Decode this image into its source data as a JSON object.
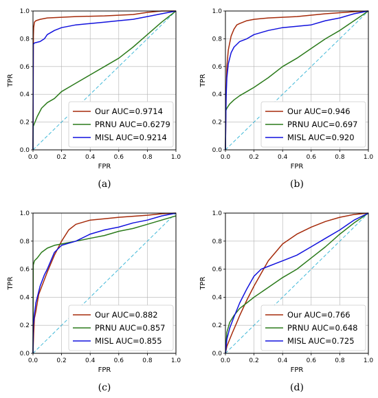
{
  "chart_data": [
    {
      "type": "line",
      "caption": "(a)",
      "xlabel": "FPR",
      "ylabel": "TPR",
      "xlim": [
        0,
        1
      ],
      "ylim": [
        0,
        1
      ],
      "xticks": [
        "0.0",
        "0.2",
        "0.4",
        "0.6",
        "0.8",
        "1.0"
      ],
      "yticks": [
        "0.0",
        "0.2",
        "0.4",
        "0.6",
        "0.8",
        "1.0"
      ],
      "grid": true,
      "legend_position": "bottom-right",
      "diagonal": true,
      "series": [
        {
          "name": "Our AUC=0.9714",
          "color": "#a52a0a",
          "x": [
            0,
            0.003,
            0.005,
            0.01,
            0.02,
            0.05,
            0.1,
            0.2,
            0.3,
            0.5,
            0.7,
            0.8,
            0.9,
            1.0
          ],
          "y": [
            0,
            0.82,
            0.88,
            0.92,
            0.93,
            0.94,
            0.95,
            0.955,
            0.96,
            0.965,
            0.975,
            0.99,
            1.0,
            1.0
          ]
        },
        {
          "name": "PRNU AUC=0.6279",
          "color": "#2a7a1a",
          "x": [
            0,
            0.002,
            0.01,
            0.03,
            0.06,
            0.1,
            0.15,
            0.2,
            0.3,
            0.4,
            0.5,
            0.6,
            0.7,
            0.8,
            0.9,
            0.95,
            1.0
          ],
          "y": [
            0,
            0.17,
            0.19,
            0.24,
            0.3,
            0.34,
            0.37,
            0.42,
            0.48,
            0.54,
            0.6,
            0.66,
            0.74,
            0.83,
            0.92,
            0.96,
            1.0
          ]
        },
        {
          "name": "MISL AUC=0.9214",
          "color": "#1111dd",
          "x": [
            0,
            0.002,
            0.01,
            0.05,
            0.08,
            0.1,
            0.15,
            0.2,
            0.3,
            0.4,
            0.5,
            0.6,
            0.7,
            0.8,
            0.9,
            1.0
          ],
          "y": [
            0,
            0.76,
            0.77,
            0.78,
            0.8,
            0.83,
            0.86,
            0.88,
            0.9,
            0.91,
            0.92,
            0.93,
            0.94,
            0.96,
            0.98,
            1.0
          ]
        }
      ]
    },
    {
      "type": "line",
      "caption": "(b)",
      "xlabel": "FPR",
      "ylabel": "TPR",
      "xlim": [
        0,
        1
      ],
      "ylim": [
        0,
        1
      ],
      "xticks": [
        "0.0",
        "0.2",
        "0.4",
        "0.6",
        "0.8",
        "1.0"
      ],
      "yticks": [
        "0.0",
        "0.2",
        "0.4",
        "0.6",
        "0.8",
        "1.0"
      ],
      "grid": true,
      "legend_position": "bottom-right",
      "diagonal": true,
      "series": [
        {
          "name": "Our AUC=0.946",
          "color": "#a52a0a",
          "x": [
            0,
            0.005,
            0.01,
            0.02,
            0.04,
            0.06,
            0.08,
            0.1,
            0.15,
            0.2,
            0.3,
            0.5,
            0.7,
            0.9,
            1.0
          ],
          "y": [
            0,
            0.4,
            0.6,
            0.72,
            0.82,
            0.87,
            0.9,
            0.91,
            0.93,
            0.94,
            0.95,
            0.96,
            0.98,
            0.995,
            1.0
          ]
        },
        {
          "name": "PRNU AUC=0.697",
          "color": "#2a7a1a",
          "x": [
            0,
            0.002,
            0.01,
            0.03,
            0.06,
            0.1,
            0.15,
            0.2,
            0.3,
            0.4,
            0.5,
            0.6,
            0.7,
            0.8,
            0.9,
            1.0
          ],
          "y": [
            0,
            0.28,
            0.3,
            0.33,
            0.36,
            0.39,
            0.42,
            0.45,
            0.52,
            0.6,
            0.66,
            0.73,
            0.8,
            0.86,
            0.93,
            1.0
          ]
        },
        {
          "name": "MISL AUC=0.920",
          "color": "#1111dd",
          "x": [
            0,
            0.005,
            0.01,
            0.02,
            0.04,
            0.06,
            0.1,
            0.15,
            0.2,
            0.3,
            0.4,
            0.5,
            0.6,
            0.7,
            0.8,
            0.9,
            1.0
          ],
          "y": [
            0,
            0.38,
            0.52,
            0.62,
            0.7,
            0.74,
            0.78,
            0.8,
            0.83,
            0.86,
            0.88,
            0.89,
            0.9,
            0.93,
            0.95,
            0.98,
            1.0
          ]
        }
      ]
    },
    {
      "type": "line",
      "caption": "(c)",
      "xlabel": "FPR",
      "ylabel": "TPR",
      "xlim": [
        0,
        1
      ],
      "ylim": [
        0,
        1
      ],
      "xticks": [
        "0.0",
        "0.2",
        "0.4",
        "0.6",
        "0.8",
        "1.0"
      ],
      "yticks": [
        "0.0",
        "0.2",
        "0.4",
        "0.6",
        "0.8",
        "1.0"
      ],
      "grid": true,
      "legend_position": "bottom-right",
      "diagonal": true,
      "series": [
        {
          "name": "Our AUC=0.882",
          "color": "#a52a0a",
          "x": [
            0,
            0.005,
            0.01,
            0.02,
            0.04,
            0.07,
            0.1,
            0.15,
            0.2,
            0.25,
            0.3,
            0.4,
            0.5,
            0.6,
            0.8,
            0.9,
            1.0
          ],
          "y": [
            0,
            0.14,
            0.25,
            0.3,
            0.42,
            0.5,
            0.58,
            0.7,
            0.8,
            0.88,
            0.92,
            0.95,
            0.96,
            0.97,
            0.985,
            0.995,
            1.0
          ]
        },
        {
          "name": "PRNU AUC=0.857",
          "color": "#2a7a1a",
          "x": [
            0,
            0.002,
            0.01,
            0.03,
            0.06,
            0.1,
            0.15,
            0.2,
            0.3,
            0.4,
            0.5,
            0.6,
            0.7,
            0.8,
            0.9,
            1.0
          ],
          "y": [
            0,
            0.63,
            0.66,
            0.68,
            0.72,
            0.75,
            0.77,
            0.78,
            0.8,
            0.82,
            0.84,
            0.87,
            0.89,
            0.92,
            0.95,
            0.98
          ]
        },
        {
          "name": "MISL AUC=0.855",
          "color": "#1111dd",
          "x": [
            0,
            0.002,
            0.01,
            0.02,
            0.05,
            0.08,
            0.1,
            0.15,
            0.2,
            0.3,
            0.4,
            0.5,
            0.6,
            0.7,
            0.8,
            0.9,
            1.0
          ],
          "y": [
            0,
            0.2,
            0.28,
            0.36,
            0.48,
            0.56,
            0.6,
            0.72,
            0.77,
            0.8,
            0.85,
            0.88,
            0.9,
            0.93,
            0.95,
            0.98,
            1.0
          ]
        }
      ]
    },
    {
      "type": "line",
      "caption": "(d)",
      "xlabel": "FPR",
      "ylabel": "TPR",
      "xlim": [
        0,
        1
      ],
      "ylim": [
        0,
        1
      ],
      "xticks": [
        "0.0",
        "0.2",
        "0.4",
        "0.6",
        "0.8",
        "1.0"
      ],
      "yticks": [
        "0.0",
        "0.2",
        "0.4",
        "0.6",
        "0.8",
        "1.0"
      ],
      "grid": true,
      "legend_position": "bottom-right",
      "diagonal": true,
      "series": [
        {
          "name": "Our AUC=0.766",
          "color": "#a52a0a",
          "x": [
            0,
            0.01,
            0.03,
            0.05,
            0.08,
            0.1,
            0.15,
            0.2,
            0.25,
            0.3,
            0.35,
            0.4,
            0.5,
            0.6,
            0.7,
            0.8,
            0.9,
            1.0
          ],
          "y": [
            0,
            0.05,
            0.1,
            0.15,
            0.22,
            0.27,
            0.38,
            0.48,
            0.57,
            0.66,
            0.72,
            0.78,
            0.85,
            0.9,
            0.94,
            0.97,
            0.99,
            1.0
          ]
        },
        {
          "name": "PRNU AUC=0.648",
          "color": "#2a7a1a",
          "x": [
            0,
            0.01,
            0.03,
            0.06,
            0.1,
            0.15,
            0.2,
            0.3,
            0.4,
            0.5,
            0.6,
            0.7,
            0.8,
            0.9,
            1.0
          ],
          "y": [
            0,
            0.15,
            0.22,
            0.27,
            0.32,
            0.36,
            0.4,
            0.47,
            0.54,
            0.6,
            0.68,
            0.76,
            0.85,
            0.93,
            1.0
          ]
        },
        {
          "name": "MISL AUC=0.725",
          "color": "#1111dd",
          "x": [
            0,
            0.01,
            0.03,
            0.06,
            0.1,
            0.15,
            0.2,
            0.25,
            0.3,
            0.35,
            0.4,
            0.5,
            0.6,
            0.7,
            0.8,
            0.9,
            1.0
          ],
          "y": [
            0,
            0.1,
            0.18,
            0.26,
            0.36,
            0.46,
            0.55,
            0.6,
            0.62,
            0.64,
            0.66,
            0.7,
            0.76,
            0.82,
            0.88,
            0.95,
            1.0
          ]
        }
      ]
    }
  ]
}
